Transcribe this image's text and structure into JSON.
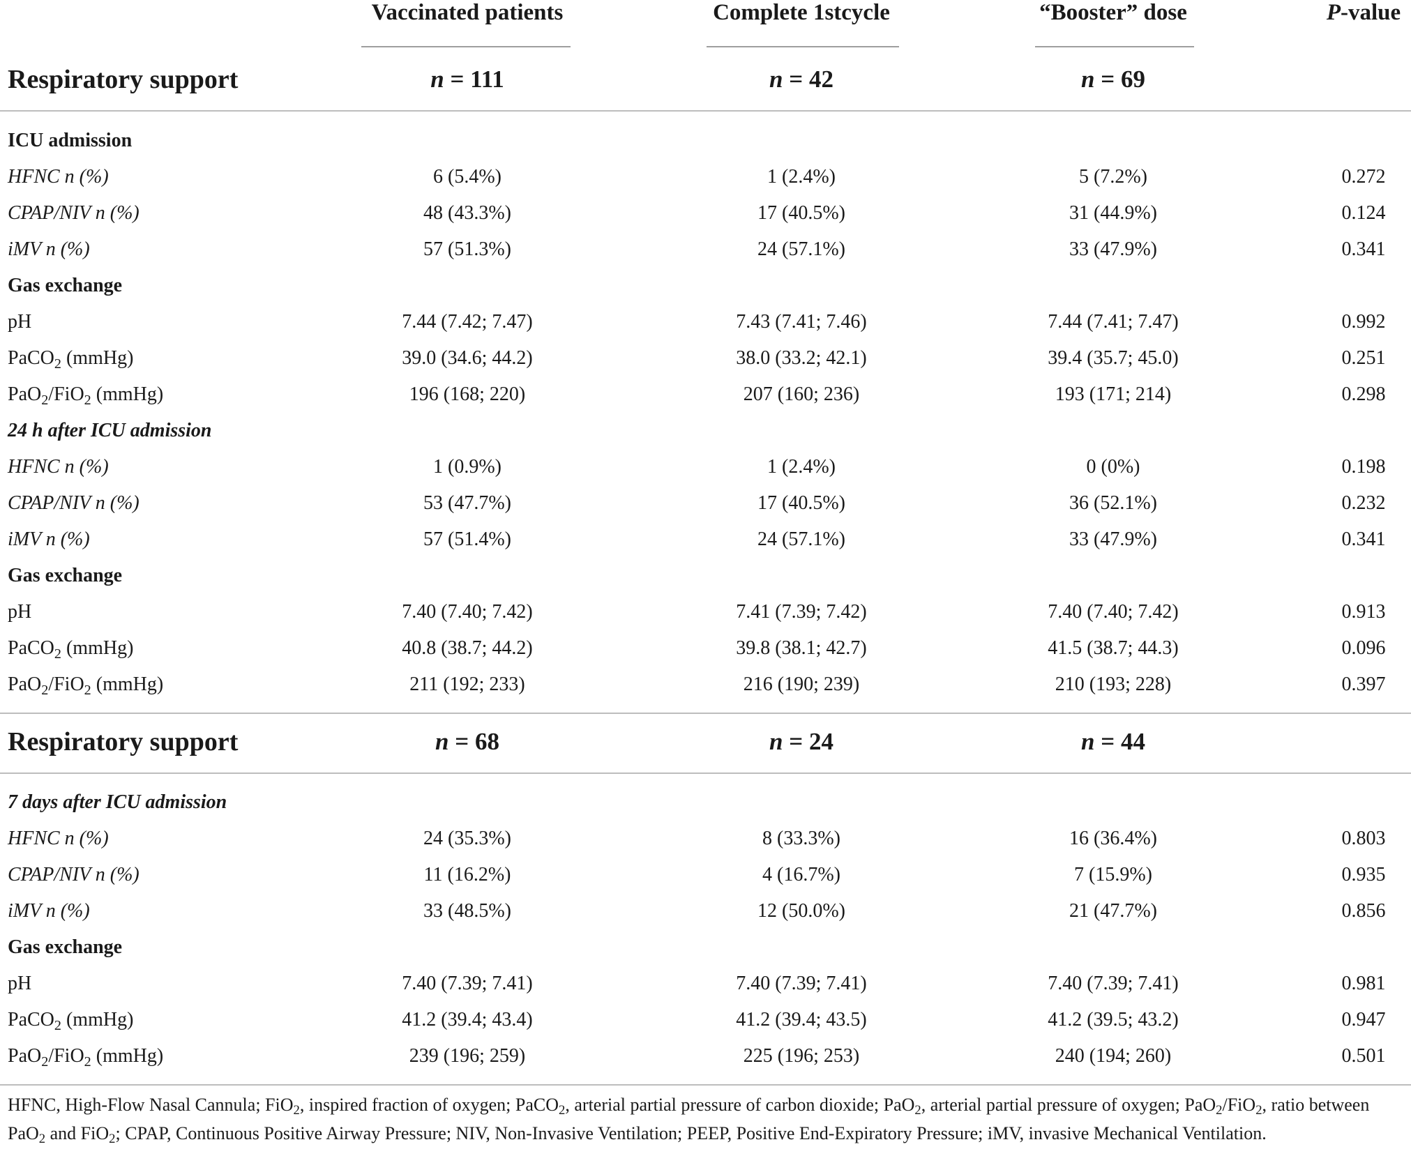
{
  "header": {
    "col_vaccinated": "Vaccinated patients",
    "col_complete": "Complete 1stcycle",
    "col_booster": "“Booster” dose",
    "col_pvalue_italic": "P",
    "col_pvalue_rest": "-value"
  },
  "section1": {
    "title": "Respiratory support",
    "n_vaccinated": "111",
    "n_complete": "42",
    "n_booster": "69",
    "n_prefix": "n",
    "n_eq": " = "
  },
  "section2": {
    "title": "Respiratory support",
    "n_vaccinated": "68",
    "n_complete": "24",
    "n_booster": "44"
  },
  "groups": {
    "icu_admission": "ICU admission",
    "after_24h": "24 h after ICU admission",
    "after_7d": "7 days after ICU admission",
    "gas_exchange": "Gas exchange"
  },
  "labels": {
    "hfnc": "HFNC n (%)",
    "cpap": "CPAP/NIV n (%)",
    "imv": "iMV n (%)",
    "ph": "pH",
    "paco2_a": "PaCO",
    "paco2_sub": "2",
    "paco2_b": " (mmHg)",
    "pf_a": "PaO",
    "pf_sub1": "2",
    "pf_b": "/FiO",
    "pf_sub2": "2",
    "pf_c": " (mmHg)"
  },
  "rows": {
    "icu_hfnc": [
      "6 (5.4%)",
      "1 (2.4%)",
      "5 (7.2%)",
      "0.272"
    ],
    "icu_cpap": [
      "48 (43.3%)",
      "17 (40.5%)",
      "31 (44.9%)",
      "0.124"
    ],
    "icu_imv": [
      "57 (51.3%)",
      "24 (57.1%)",
      "33 (47.9%)",
      "0.341"
    ],
    "icu_ph": [
      "7.44 (7.42; 7.47)",
      "7.43 (7.41; 7.46)",
      "7.44 (7.41; 7.47)",
      "0.992"
    ],
    "icu_paco2": [
      "39.0 (34.6; 44.2)",
      "38.0 (33.2; 42.1)",
      "39.4 (35.7; 45.0)",
      "0.251"
    ],
    "icu_pf": [
      "196 (168; 220)",
      "207 (160; 236)",
      "193 (171; 214)",
      "0.298"
    ],
    "h24_hfnc": [
      "1 (0.9%)",
      "1 (2.4%)",
      "0 (0%)",
      "0.198"
    ],
    "h24_cpap": [
      "53 (47.7%)",
      "17 (40.5%)",
      "36 (52.1%)",
      "0.232"
    ],
    "h24_imv": [
      "57 (51.4%)",
      "24 (57.1%)",
      "33 (47.9%)",
      "0.341"
    ],
    "h24_ph": [
      "7.40 (7.40; 7.42)",
      "7.41 (7.39; 7.42)",
      "7.40 (7.40; 7.42)",
      "0.913"
    ],
    "h24_paco2": [
      "40.8 (38.7; 44.2)",
      "39.8 (38.1; 42.7)",
      "41.5 (38.7; 44.3)",
      "0.096"
    ],
    "h24_pf": [
      "211 (192; 233)",
      "216 (190; 239)",
      "210 (193; 228)",
      "0.397"
    ],
    "d7_hfnc": [
      "24 (35.3%)",
      "8 (33.3%)",
      "16 (36.4%)",
      "0.803"
    ],
    "d7_cpap": [
      "11 (16.2%)",
      "4 (16.7%)",
      "7 (15.9%)",
      "0.935"
    ],
    "d7_imv": [
      "33 (48.5%)",
      "12 (50.0%)",
      "21 (47.7%)",
      "0.856"
    ],
    "d7_ph": [
      "7.40 (7.39; 7.41)",
      "7.40 (7.39; 7.41)",
      "7.40 (7.39; 7.41)",
      "0.981"
    ],
    "d7_paco2": [
      "41.2 (39.4; 43.4)",
      "41.2 (39.4; 43.5)",
      "41.2 (39.5; 43.2)",
      "0.947"
    ],
    "d7_pf": [
      "239 (196; 259)",
      "225 (196; 253)",
      "240 (194; 260)",
      "0.501"
    ]
  },
  "footnote": {
    "p1": "HFNC, High-Flow Nasal Cannula; FiO",
    "s1": "2",
    "p2": ", inspired fraction of oxygen; PaCO",
    "s2": "2",
    "p3": ", arterial partial pressure of carbon dioxide; PaO",
    "s3": "2",
    "p4": ", arterial partial pressure of oxygen; PaO",
    "s4": "2",
    "p5": "/FiO",
    "s5": "2",
    "p6": ", ratio between PaO",
    "s6": "2",
    "p7": " and FiO",
    "s7": "2",
    "p8": "; CPAP, Continuous Positive Airway Pressure; NIV, Non-Invasive Ventilation; PEEP, Positive End-Expiratory Pressure; iMV, invasive Mechanical Ventilation."
  }
}
